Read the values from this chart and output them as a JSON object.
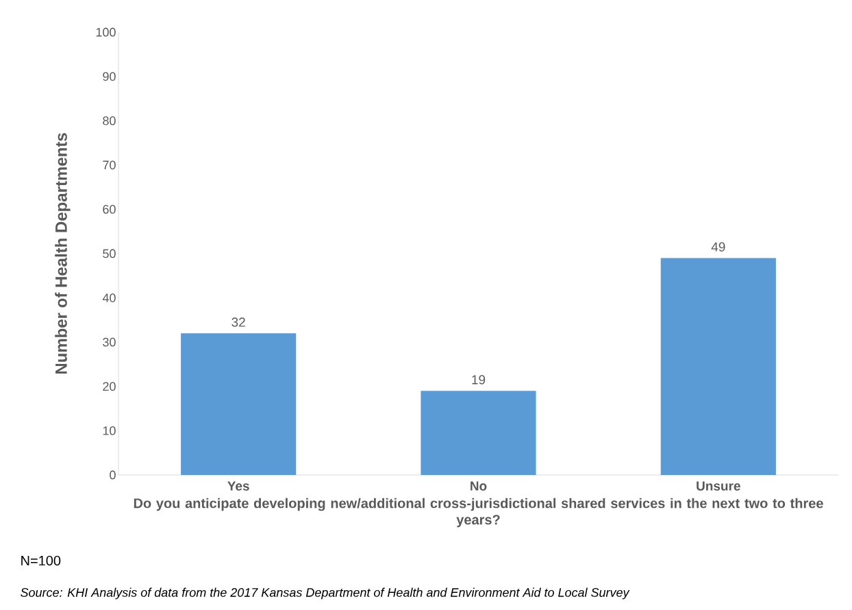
{
  "chart_data": {
    "type": "bar",
    "xlabel": "Do you anticipate developing new/additional cross-jurisdictional shared services in the next two to three years?",
    "ylabel": "Number of Health Departments",
    "categories": [
      "Yes",
      "No",
      "Unsure"
    ],
    "values": [
      32,
      19,
      49
    ],
    "color": "#5b9bd5",
    "ylim": [
      0,
      100
    ],
    "yticks": [
      0,
      10,
      20,
      30,
      40,
      50,
      60,
      70,
      80,
      90,
      100
    ],
    "data_labels": true,
    "grid": false,
    "annotations": [
      "N=100",
      "Source: KHI Analysis of data from the 2017 Kansas Department of Health and Environment Aid to Local Survey"
    ]
  }
}
